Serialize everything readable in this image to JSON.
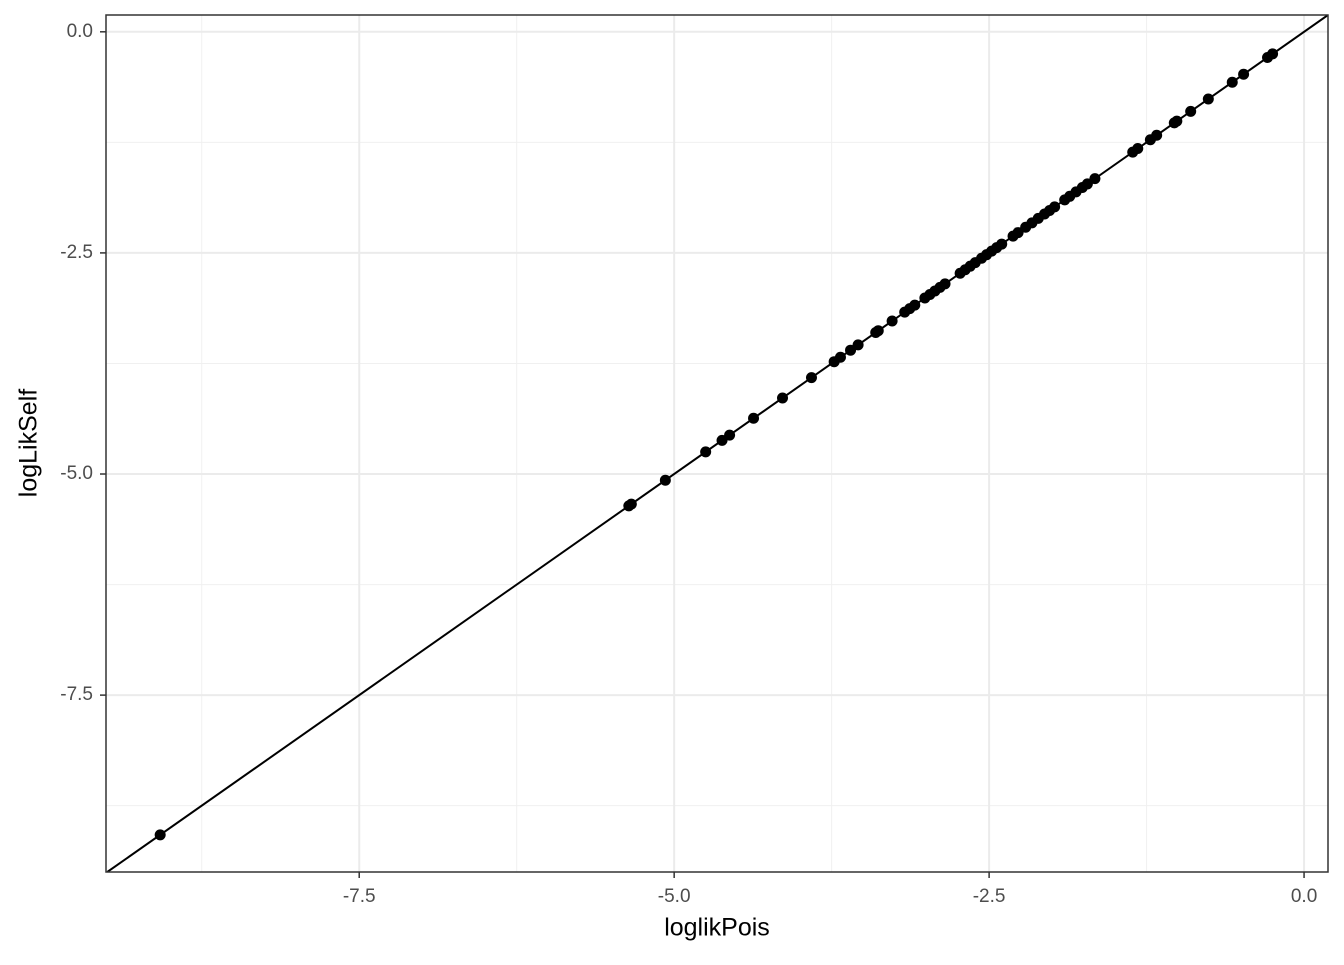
{
  "chart_data": {
    "type": "scatter",
    "xlabel": "loglikPois",
    "ylabel": "logLikSelf",
    "series": [
      {
        "color": "#000000",
        "x": [
          -9.08,
          -5.36,
          -5.34,
          -5.07,
          -4.75,
          -4.62,
          -4.56,
          -4.37,
          -4.14,
          -3.91,
          -3.73,
          -3.68,
          -3.6,
          -3.54,
          -3.4,
          -3.38,
          -3.27,
          -3.17,
          -3.13,
          -3.09,
          -3.01,
          -2.97,
          -2.93,
          -2.89,
          -2.85,
          -2.73,
          -2.69,
          -2.65,
          -2.61,
          -2.56,
          -2.52,
          -2.48,
          -2.44,
          -2.4,
          -2.31,
          -2.27,
          -2.21,
          -2.16,
          -2.11,
          -2.06,
          -2.02,
          -1.98,
          -1.9,
          -1.86,
          -1.81,
          -1.76,
          -1.72,
          -1.66,
          -1.36,
          -1.32,
          -1.22,
          -1.17,
          -1.03,
          -1.01,
          -0.9,
          -0.76,
          -0.57,
          -0.48,
          -0.29,
          -0.25
        ],
        "values": [
          -9.08,
          -5.36,
          -5.34,
          -5.07,
          -4.75,
          -4.62,
          -4.56,
          -4.37,
          -4.14,
          -3.91,
          -3.73,
          -3.68,
          -3.6,
          -3.54,
          -3.4,
          -3.38,
          -3.27,
          -3.17,
          -3.13,
          -3.09,
          -3.01,
          -2.97,
          -2.93,
          -2.89,
          -2.85,
          -2.73,
          -2.69,
          -2.65,
          -2.61,
          -2.56,
          -2.52,
          -2.48,
          -2.44,
          -2.4,
          -2.31,
          -2.27,
          -2.21,
          -2.16,
          -2.11,
          -2.06,
          -2.02,
          -1.98,
          -1.9,
          -1.86,
          -1.81,
          -1.76,
          -1.72,
          -1.66,
          -1.36,
          -1.32,
          -1.22,
          -1.17,
          -1.03,
          -1.01,
          -0.9,
          -0.76,
          -0.57,
          -0.48,
          -0.29,
          -0.25
        ]
      }
    ],
    "xlim": [
      -9.51,
      0.19
    ],
    "ylim": [
      -9.5,
      0.19
    ],
    "xticks": [
      -7.5,
      {
        "value": -5,
        "label": "-5.0"
      },
      -2.5,
      {
        "value": 0,
        "label": "0.0"
      }
    ],
    "yticks": [
      -7.5,
      {
        "value": -5,
        "label": "-5.0"
      },
      -2.5,
      {
        "value": 0,
        "label": "0.0"
      }
    ],
    "xminor": [
      -8.75,
      -6.25,
      -3.75,
      -1.25
    ],
    "yminor": [
      -8.75,
      -6.25,
      -3.75,
      -1.25
    ],
    "grid": true,
    "identity_line": true
  }
}
